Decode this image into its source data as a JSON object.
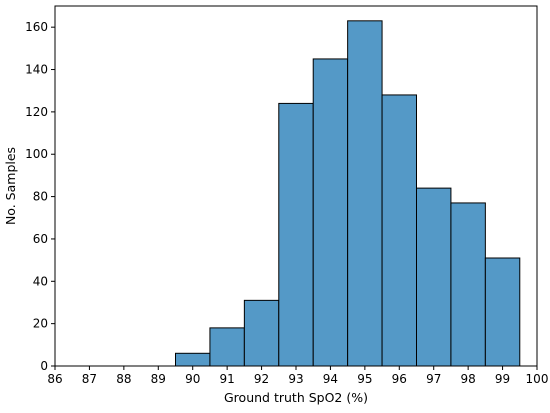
{
  "chart_data": {
    "type": "bar",
    "title": "",
    "xlabel": "Ground truth SpO2 (%)",
    "ylabel": "No. Samples",
    "xlim": [
      86,
      100
    ],
    "ylim": [
      0,
      170
    ],
    "x_ticks": [
      86,
      87,
      88,
      89,
      90,
      91,
      92,
      93,
      94,
      95,
      96,
      97,
      98,
      99,
      100
    ],
    "y_ticks": [
      0,
      20,
      40,
      60,
      80,
      100,
      120,
      140,
      160
    ],
    "bin_width": 1,
    "bins": [
      {
        "center": 90,
        "count": 6
      },
      {
        "center": 91,
        "count": 18
      },
      {
        "center": 92,
        "count": 31
      },
      {
        "center": 93,
        "count": 124
      },
      {
        "center": 94,
        "count": 145
      },
      {
        "center": 95,
        "count": 163
      },
      {
        "center": 96,
        "count": 128
      },
      {
        "center": 97,
        "count": 84
      },
      {
        "center": 98,
        "count": 77
      },
      {
        "center": 99,
        "count": 51
      }
    ],
    "grid": false,
    "legend": "none",
    "bar_color": "#5499c7",
    "edge_color": "#000000"
  }
}
